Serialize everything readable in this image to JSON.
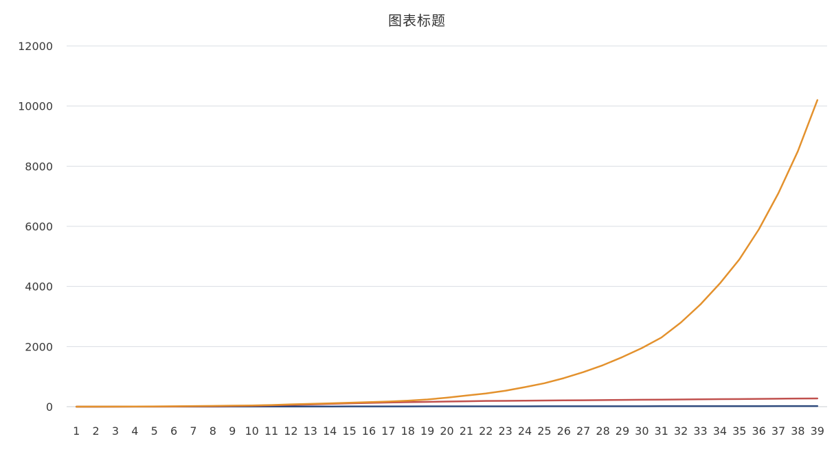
{
  "chart_data": {
    "type": "line",
    "title": "图表标题",
    "xlabel": "",
    "ylabel": "",
    "categories": [
      "1",
      "2",
      "3",
      "4",
      "5",
      "6",
      "7",
      "8",
      "9",
      "10",
      "11",
      "12",
      "13",
      "14",
      "15",
      "16",
      "17",
      "18",
      "19",
      "20",
      "21",
      "22",
      "23",
      "24",
      "25",
      "26",
      "27",
      "28",
      "29",
      "30",
      "31",
      "32",
      "33",
      "34",
      "35",
      "36",
      "37",
      "38",
      "39"
    ],
    "ylim": [
      0,
      12000
    ],
    "yticks": [
      0,
      2000,
      4000,
      6000,
      8000,
      10000,
      12000
    ],
    "grid": true,
    "series": [
      {
        "color": "#e3912d",
        "values": [
          1,
          2,
          3,
          5,
          8,
          13,
          21,
          26,
          34,
          40,
          55,
          78,
          95,
          110,
          130,
          150,
          170,
          200,
          240,
          300,
          370,
          440,
          530,
          650,
          780,
          950,
          1150,
          1380,
          1650,
          1950,
          2300,
          2800,
          3400,
          4100,
          4900,
          5900,
          7100,
          8500,
          10200
        ]
      },
      {
        "color": "#c0504d",
        "values": [
          0,
          0,
          1,
          2,
          3,
          6,
          10,
          15,
          22,
          30,
          45,
          60,
          75,
          95,
          110,
          125,
          140,
          150,
          160,
          170,
          180,
          190,
          195,
          200,
          205,
          210,
          215,
          220,
          225,
          230,
          235,
          240,
          245,
          250,
          255,
          260,
          265,
          270,
          275
        ]
      },
      {
        "color": "#2e4a7d",
        "values": [
          1,
          1,
          2,
          2,
          3,
          3,
          4,
          4,
          5,
          5,
          6,
          6,
          7,
          7,
          8,
          8,
          9,
          9,
          10,
          10,
          11,
          11,
          12,
          12,
          13,
          13,
          14,
          14,
          15,
          15,
          16,
          16,
          17,
          17,
          18,
          18,
          19,
          19,
          20
        ]
      }
    ]
  }
}
